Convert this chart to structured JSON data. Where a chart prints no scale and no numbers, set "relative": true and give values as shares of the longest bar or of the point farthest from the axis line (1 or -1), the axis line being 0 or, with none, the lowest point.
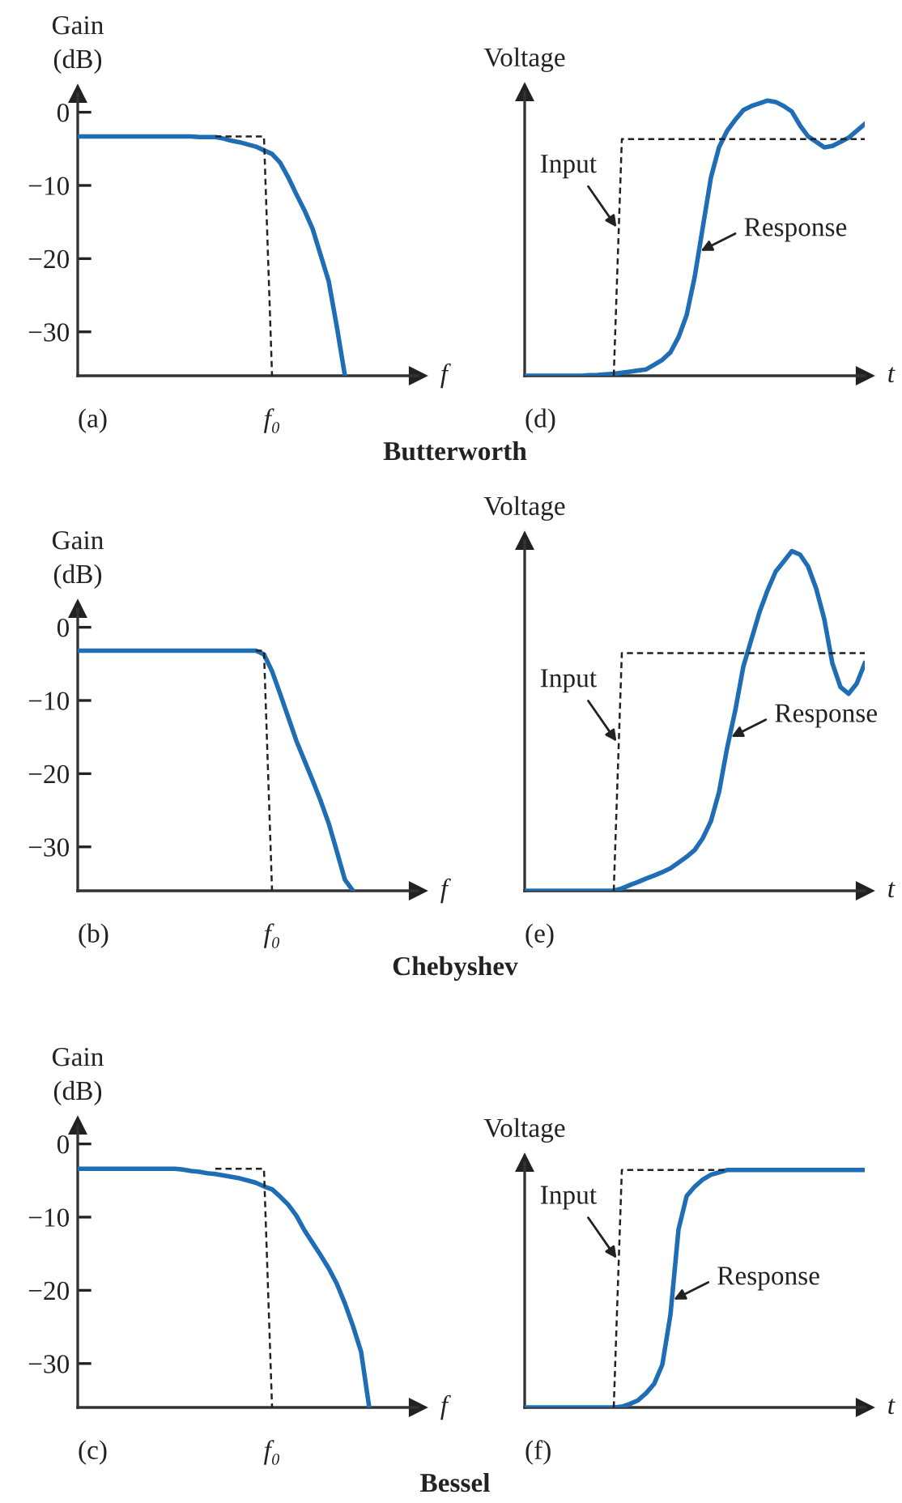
{
  "chart_data": [
    {
      "type": "line",
      "title": "Butterworth",
      "xlabel": "f",
      "ylabel": "Gain\n(dB)",
      "categories": [
        null,
        null,
        null,
        null,
        null,
        null,
        null,
        null,
        null,
        null,
        null,
        null,
        null,
        null,
        null,
        null,
        null,
        null,
        null,
        null,
        null,
        null,
        null,
        null,
        null,
        null,
        null,
        null,
        null,
        null,
        null,
        null,
        null,
        null,
        null,
        null,
        null,
        null,
        null,
        null,
        null,
        null,
        null
      ],
      "ylim": [
        -36,
        2.5
      ],
      "yticks": [
        {
          "value": 0,
          "label": "0"
        },
        {
          "value": -10,
          "label": "−10"
        },
        {
          "value": -20,
          "label": "−20"
        },
        {
          "value": -30,
          "label": "−30"
        }
      ],
      "annotations": [
        "(a)",
        "f₀"
      ],
      "series": [
        {
          "values": [
            null,
            null,
            null,
            null,
            null,
            null,
            null,
            null,
            null,
            null,
            null,
            null,
            null,
            null,
            null,
            null,
            null,
            -3.3,
            -3.3,
            -3.3,
            -3.3,
            -3.3,
            -3.3,
            -3.3,
            -36,
            null,
            null,
            null,
            null,
            null,
            null,
            null,
            null,
            null,
            null,
            null,
            null,
            null,
            null,
            null,
            null,
            null,
            null
          ],
          "color": "#222222",
          "line_style": "dashed"
        },
        {
          "values": [
            -3.3,
            -3.3,
            -3.3,
            -3.3,
            -3.3,
            -3.3,
            -3.3,
            -3.3,
            -3.3,
            -3.3,
            -3.3,
            -3.3,
            -3.3,
            -3.3,
            -3.3,
            -3.4,
            -3.4,
            -3.4,
            -3.6,
            -3.9,
            -4.1,
            -4.4,
            -4.7,
            -5.2,
            -5.7,
            -6.9,
            -8.9,
            -11.2,
            -13.4,
            -15.9,
            -19.5,
            -23.1,
            -29.3,
            -36,
            null,
            null,
            null,
            null,
            null,
            null,
            null,
            null,
            null
          ],
          "color": "#1f6db5"
        }
      ]
    },
    {
      "type": "line",
      "xlabel": "t",
      "ylabel": "Voltage",
      "relative": true,
      "categories": [
        null,
        null,
        null,
        null,
        null,
        null,
        null,
        null,
        null,
        null,
        null,
        null,
        null,
        null,
        null,
        null,
        null,
        null,
        null,
        null,
        null,
        null,
        null,
        null,
        null,
        null,
        null,
        null,
        null,
        null,
        null,
        null,
        null,
        null,
        null,
        null,
        null,
        null,
        null,
        null,
        null,
        null,
        null
      ],
      "annotations": [
        "(d)",
        "Input",
        "Response"
      ],
      "series": [
        {
          "values": [
            null,
            null,
            null,
            null,
            null,
            null,
            null,
            null,
            null,
            null,
            null,
            0,
            0.86,
            0.86,
            0.86,
            0.86,
            0.86,
            0.86,
            0.86,
            0.86,
            0.86,
            0.86,
            0.86,
            0.86,
            0.86,
            0.86,
            0.86,
            0.86,
            0.86,
            0.86,
            0.86,
            0.86,
            0.86,
            0.86,
            0.86,
            0.86,
            0.86,
            0.86,
            0.86,
            0.86,
            0.86,
            0.86,
            0.86
          ],
          "color": "#222222",
          "line_style": "dashed"
        },
        {
          "values": [
            0,
            0,
            0,
            0,
            0,
            0,
            0,
            0,
            0.002,
            0.003,
            0.005,
            0.007,
            0.011,
            0.015,
            0.019,
            0.023,
            0.04,
            0.058,
            0.085,
            0.14,
            0.22,
            0.36,
            0.54,
            0.72,
            0.83,
            0.89,
            0.93,
            0.965,
            0.98,
            0.99,
            1.0,
            0.995,
            0.98,
            0.96,
            0.91,
            0.87,
            0.85,
            0.83,
            0.835,
            0.85,
            0.865,
            0.89,
            0.915
          ],
          "color": "#1f6db5"
        }
      ]
    },
    {
      "type": "line",
      "title": "Chebyshev",
      "xlabel": "f",
      "ylabel": "Gain\n(dB)",
      "categories": [
        null,
        null,
        null,
        null,
        null,
        null,
        null,
        null,
        null,
        null,
        null,
        null,
        null,
        null,
        null,
        null,
        null,
        null,
        null,
        null,
        null,
        null,
        null,
        null,
        null,
        null,
        null,
        null,
        null,
        null,
        null,
        null,
        null,
        null,
        null,
        null,
        null,
        null,
        null,
        null,
        null,
        null,
        null
      ],
      "ylim": [
        -36,
        2.5
      ],
      "yticks": [
        {
          "value": 0,
          "label": "0"
        },
        {
          "value": -10,
          "label": "−10"
        },
        {
          "value": -20,
          "label": "−20"
        },
        {
          "value": -30,
          "label": "−30"
        }
      ],
      "annotations": [
        "(b)",
        "f₀"
      ],
      "series": [
        {
          "values": [
            null,
            null,
            null,
            null,
            null,
            null,
            null,
            null,
            null,
            null,
            null,
            null,
            null,
            null,
            null,
            null,
            null,
            null,
            null,
            null,
            null,
            null,
            -3.2,
            -3.2,
            -36,
            null,
            null,
            null,
            null,
            null,
            null,
            null,
            null,
            null,
            null,
            null,
            null,
            null,
            null,
            null,
            null,
            null,
            null
          ],
          "color": "#222222",
          "line_style": "dashed"
        },
        {
          "values": [
            -3.2,
            -3.2,
            -3.2,
            -3.2,
            -3.2,
            -3.2,
            -3.2,
            -3.2,
            -3.2,
            -3.2,
            -3.2,
            -3.2,
            -3.2,
            -3.2,
            -3.2,
            -3.2,
            -3.2,
            -3.2,
            -3.2,
            -3.2,
            -3.2,
            -3.2,
            -3.2,
            -3.7,
            -6.0,
            -9.1,
            -12.3,
            -15.5,
            -18.2,
            -20.9,
            -23.7,
            -26.8,
            -30.6,
            -34.5,
            -36,
            null,
            null,
            null,
            null,
            null,
            null,
            null,
            null
          ],
          "color": "#1f6db5"
        }
      ]
    },
    {
      "type": "line",
      "xlabel": "t",
      "ylabel": "Voltage",
      "relative": true,
      "categories": [
        null,
        null,
        null,
        null,
        null,
        null,
        null,
        null,
        null,
        null,
        null,
        null,
        null,
        null,
        null,
        null,
        null,
        null,
        null,
        null,
        null,
        null,
        null,
        null,
        null,
        null,
        null,
        null,
        null,
        null,
        null,
        null,
        null,
        null,
        null,
        null,
        null,
        null,
        null,
        null,
        null,
        null,
        null
      ],
      "annotations": [
        "(e)",
        "Input",
        "Response"
      ],
      "series": [
        {
          "values": [
            null,
            null,
            null,
            null,
            null,
            null,
            null,
            null,
            null,
            null,
            null,
            0,
            0.7,
            0.7,
            0.7,
            0.7,
            0.7,
            0.7,
            0.7,
            0.7,
            0.7,
            0.7,
            0.7,
            0.7,
            0.7,
            0.7,
            0.7,
            0.7,
            0.7,
            0.7,
            0.7,
            0.7,
            0.7,
            0.7,
            0.7,
            0.7,
            0.7,
            0.7,
            0.7,
            0.7,
            0.7,
            0.7,
            0.7
          ],
          "color": "#222222",
          "line_style": "dashed"
        },
        {
          "values": [
            0,
            0,
            0,
            0,
            0,
            0,
            0,
            0,
            0,
            0,
            0,
            0,
            0.007,
            0.017,
            0.026,
            0.036,
            0.045,
            0.055,
            0.066,
            0.083,
            0.1,
            0.12,
            0.155,
            0.205,
            0.29,
            0.42,
            0.53,
            0.66,
            0.74,
            0.82,
            0.885,
            0.94,
            0.97,
            1.0,
            0.99,
            0.955,
            0.89,
            0.8,
            0.67,
            0.6,
            0.58,
            0.61,
            0.67
          ],
          "color": "#1f6db5"
        }
      ]
    },
    {
      "type": "line",
      "title": "Bessel",
      "xlabel": "f",
      "ylabel": "Gain\n(dB)",
      "categories": [
        null,
        null,
        null,
        null,
        null,
        null,
        null,
        null,
        null,
        null,
        null,
        null,
        null,
        null,
        null,
        null,
        null,
        null,
        null,
        null,
        null,
        null,
        null,
        null,
        null,
        null,
        null,
        null,
        null,
        null,
        null,
        null,
        null,
        null,
        null,
        null,
        null,
        null,
        null,
        null,
        null,
        null,
        null
      ],
      "ylim": [
        -36,
        2.5
      ],
      "yticks": [
        {
          "value": 0,
          "label": "0"
        },
        {
          "value": -10,
          "label": "−10"
        },
        {
          "value": -20,
          "label": "−20"
        },
        {
          "value": -30,
          "label": "−30"
        }
      ],
      "annotations": [
        "(c)",
        "f₀"
      ],
      "series": [
        {
          "values": [
            null,
            null,
            null,
            null,
            null,
            null,
            null,
            null,
            null,
            null,
            null,
            null,
            null,
            null,
            null,
            null,
            null,
            -3.4,
            -3.4,
            -3.4,
            -3.4,
            -3.4,
            -3.4,
            -3.4,
            -36,
            null,
            null,
            null,
            null,
            null,
            null,
            null,
            null,
            null,
            null,
            null,
            null,
            null,
            null,
            null,
            null,
            null,
            null
          ],
          "color": "#222222",
          "line_style": "dashed"
        },
        {
          "values": [
            -3.4,
            -3.4,
            -3.4,
            -3.4,
            -3.4,
            -3.4,
            -3.4,
            -3.4,
            -3.4,
            -3.4,
            -3.4,
            -3.4,
            -3.4,
            -3.5,
            -3.7,
            -3.8,
            -4.0,
            -4.1,
            -4.3,
            -4.5,
            -4.7,
            -5.0,
            -5.3,
            -5.8,
            -6.2,
            -7.2,
            -8.3,
            -9.8,
            -11.8,
            -13.5,
            -15.2,
            -17.0,
            -19.1,
            -21.8,
            -24.9,
            -28.4,
            -36,
            null,
            null,
            null,
            null,
            null,
            null
          ],
          "color": "#1f6db5"
        }
      ]
    },
    {
      "type": "line",
      "xlabel": "t",
      "ylabel": "Voltage",
      "relative": true,
      "categories": [
        null,
        null,
        null,
        null,
        null,
        null,
        null,
        null,
        null,
        null,
        null,
        null,
        null,
        null,
        null,
        null,
        null,
        null,
        null,
        null,
        null,
        null,
        null,
        null,
        null,
        null,
        null,
        null,
        null,
        null,
        null,
        null,
        null,
        null,
        null,
        null,
        null,
        null,
        null,
        null,
        null,
        null,
        null
      ],
      "annotations": [
        "(f)",
        "Input",
        "Response"
      ],
      "series": [
        {
          "values": [
            null,
            null,
            null,
            null,
            null,
            null,
            null,
            null,
            null,
            null,
            null,
            0,
            1,
            1,
            1,
            1,
            1,
            1,
            1,
            1,
            1,
            1,
            1,
            1,
            1,
            1,
            null,
            null,
            null,
            null,
            null,
            null,
            null,
            null,
            null,
            null,
            null,
            null,
            null,
            null,
            null,
            null,
            null
          ],
          "color": "#222222",
          "line_style": "dashed"
        },
        {
          "values": [
            0,
            0,
            0,
            0,
            0,
            0,
            0,
            0,
            0,
            0,
            0,
            0,
            0.003,
            0.015,
            0.03,
            0.06,
            0.1,
            0.18,
            0.39,
            0.75,
            0.89,
            0.93,
            0.96,
            0.98,
            0.99,
            1,
            1,
            1,
            1,
            1,
            1,
            1,
            1,
            1,
            1,
            1,
            1,
            1,
            1,
            1,
            1,
            1,
            1
          ],
          "color": "#1f6db5"
        }
      ]
    }
  ]
}
